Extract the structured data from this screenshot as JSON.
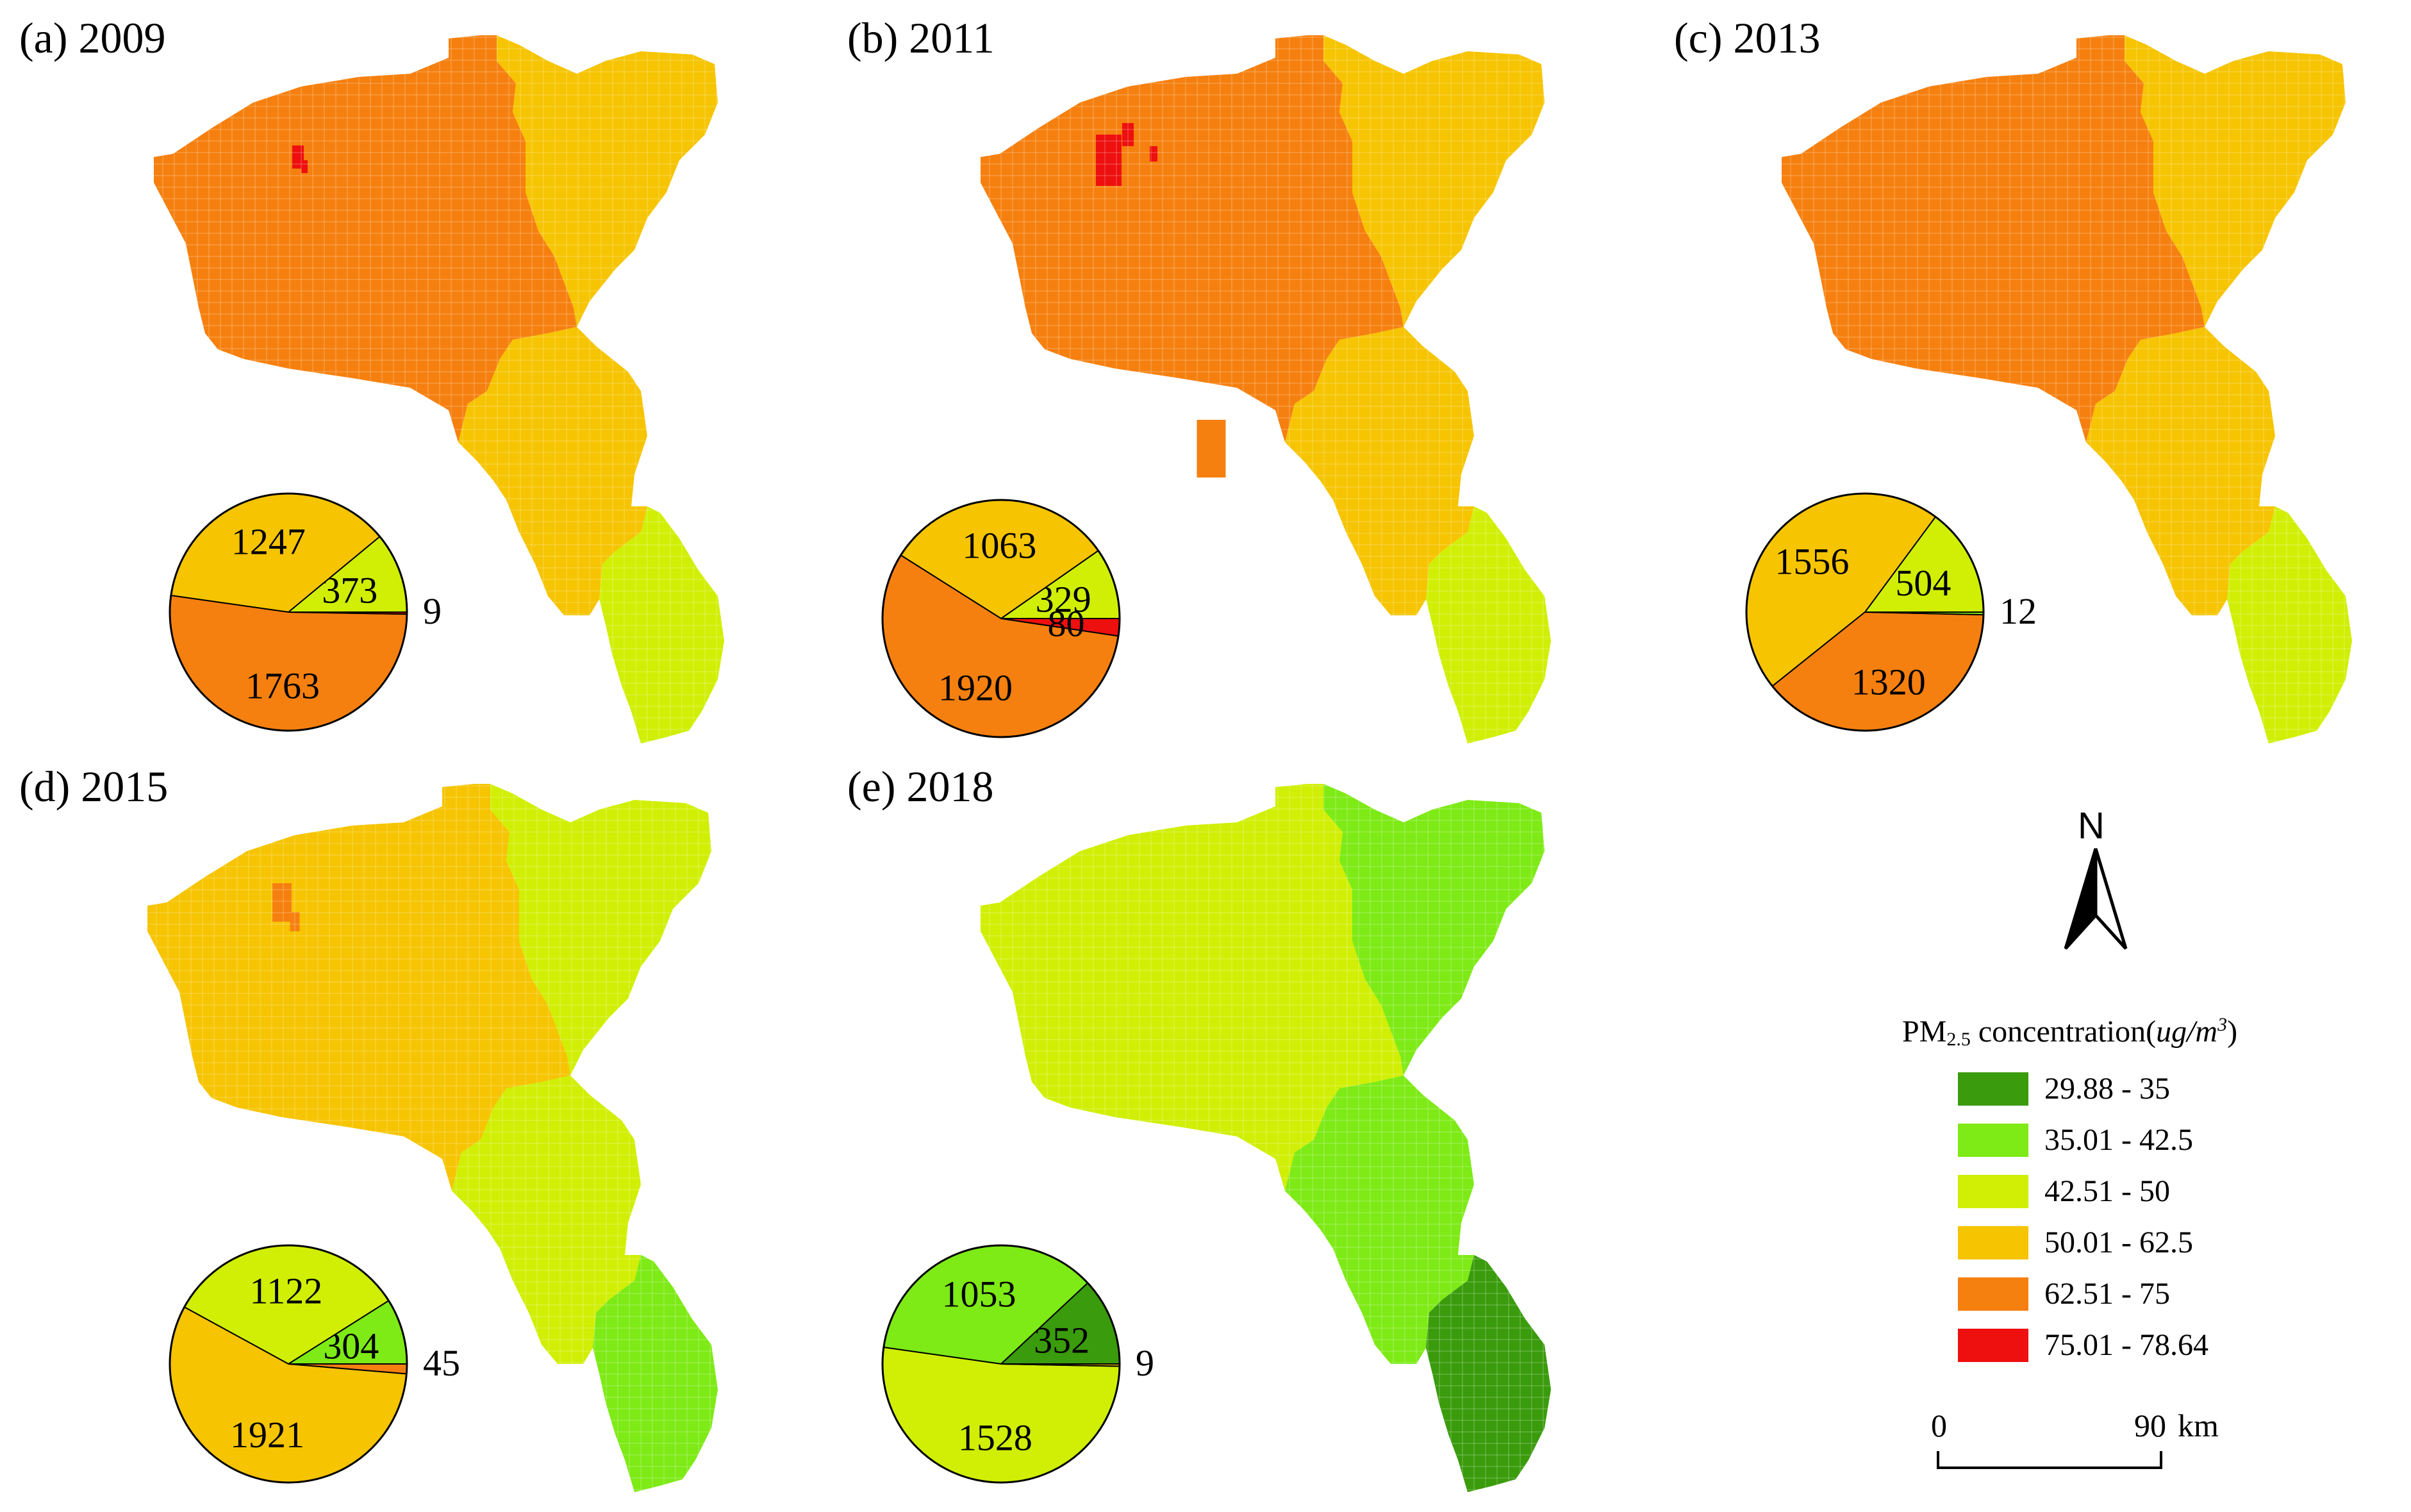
{
  "colors": {
    "c1": "#3a9b0c",
    "c2": "#7eea16",
    "c3": "#d0ef04",
    "c4": "#f6c400",
    "c5": "#f6800f",
    "c6": "#ee0f0f",
    "grid": "rgba(255,255,255,0.16)"
  },
  "panels": [
    {
      "label": "(a) 2009",
      "pie": [
        {
          "cls": "c3",
          "value": 373,
          "label": "373"
        },
        {
          "cls": "c4",
          "value": 1247,
          "label": "1247"
        },
        {
          "cls": "c5",
          "value": 1763,
          "label": "1763"
        },
        {
          "cls": "c6",
          "value": 9,
          "label": "9"
        }
      ]
    },
    {
      "label": "(b) 2011",
      "pie": [
        {
          "cls": "c3",
          "value": 329,
          "label": "329"
        },
        {
          "cls": "c4",
          "value": 1063,
          "label": "1063"
        },
        {
          "cls": "c5",
          "value": 1920,
          "label": "1920"
        },
        {
          "cls": "c6",
          "value": 80,
          "label": "80"
        }
      ]
    },
    {
      "label": "(c) 2013",
      "pie": [
        {
          "cls": "c3",
          "value": 504,
          "label": "504"
        },
        {
          "cls": "c4",
          "value": 1556,
          "label": "1556"
        },
        {
          "cls": "c5",
          "value": 1320,
          "label": "1320"
        },
        {
          "cls": "c2",
          "value": 12,
          "label": "12"
        }
      ]
    },
    {
      "label": "(d) 2015",
      "pie": [
        {
          "cls": "c2",
          "value": 304,
          "label": "304"
        },
        {
          "cls": "c3",
          "value": 1122,
          "label": "1122"
        },
        {
          "cls": "c4",
          "value": 1921,
          "label": "1921"
        },
        {
          "cls": "c5",
          "value": 45,
          "label": "45"
        }
      ]
    },
    {
      "label": "(e) 2018",
      "pie": [
        {
          "cls": "c1",
          "value": 352,
          "label": "352"
        },
        {
          "cls": "c2",
          "value": 1053,
          "label": "1053"
        },
        {
          "cls": "c3",
          "value": 1528,
          "label": "1528"
        },
        {
          "cls": "c4",
          "value": 9,
          "label": "9"
        }
      ]
    }
  ],
  "legend": {
    "title_main": "PM",
    "title_sub": "2.5",
    "title_rest": " concentration(",
    "title_unit": "ug/m",
    "title_sup": "3",
    "title_close": ")",
    "items": [
      {
        "cls": "c1",
        "label": "29.88 - 35"
      },
      {
        "cls": "c2",
        "label": "35.01 - 42.5"
      },
      {
        "cls": "c3",
        "label": "42.51 - 50"
      },
      {
        "cls": "c4",
        "label": "50.01 - 62.5"
      },
      {
        "cls": "c5",
        "label": "62.51 - 75"
      },
      {
        "cls": "c6",
        "label": "75.01 - 78.64"
      }
    ]
  },
  "north": {
    "letter": "N"
  },
  "scale": {
    "start": "0",
    "end": "90",
    "unit": "km"
  }
}
